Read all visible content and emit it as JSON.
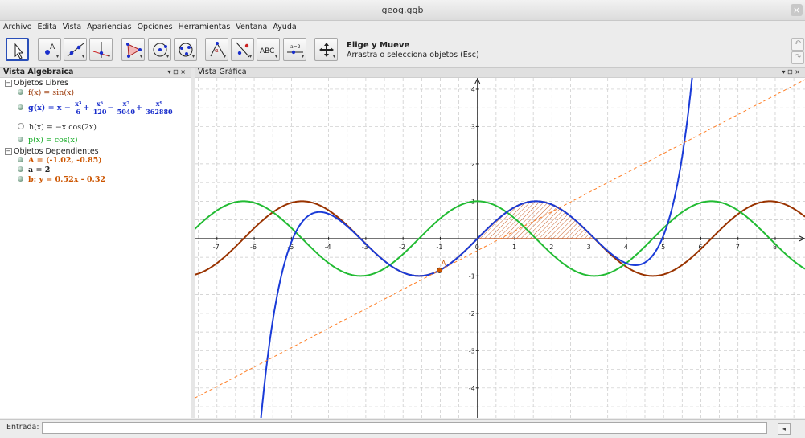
{
  "window": {
    "title": "geog.ggb",
    "close": "×"
  },
  "menu": [
    "Archivo",
    "Edita",
    "Vista",
    "Apariencias",
    "Opciones",
    "Herramientas",
    "Ventana",
    "Ayuda"
  ],
  "toolbar": {
    "help_title": "Elige y Mueve",
    "help_desc": "Arrastra o selecciona objetos (Esc)",
    "text_tool_label": "ABC",
    "slider_tool_label": "a=2",
    "tools": [
      "move-tool-icon",
      "point-tool-icon",
      "line-tool-icon",
      "perpendicular-tool-icon",
      "polygon-tool-icon",
      "circle-tool-icon",
      "conic-tool-icon",
      "angle-tool-icon",
      "reflect-tool-icon",
      "text-tool-icon",
      "slider-tool-icon",
      "move-view-tool-icon"
    ]
  },
  "algebra": {
    "title": "Vista Algebraica",
    "controls": "▾ ⊡ ×",
    "free_group": "Objetos Libres",
    "dependent_group": "Objetos Dependientes",
    "f": "f(x) = sin(x)",
    "g": {
      "prefix": "g(x) = x −",
      "t1n": "x³",
      "t1d": "6",
      "t2n": "x⁵",
      "t2d": "120",
      "t3n": "x⁷",
      "t3d": "5040",
      "t4n": "x⁹",
      "t4d": "362880",
      "plus1": "+",
      "minus": "−",
      "plus2": "+"
    },
    "h": "h(x) = −x cos(2x)",
    "p": "p(x) = cos(x)",
    "A": "A = (-1.02, -0.85)",
    "a": "a = 2",
    "b": "b: y = 0.52x - 0.32",
    "colors": {
      "f": "#993300",
      "g": "#1a2fcc",
      "h": "#333333",
      "p": "#11aa22",
      "A": "#cc5500"
    }
  },
  "graphics": {
    "title": "Vista Gráfica",
    "controls": "▾ ⊡ ×",
    "point_label": "A"
  },
  "input": {
    "label": "Entrada:",
    "value": "",
    "help": "◂"
  },
  "chart_data": {
    "type": "line",
    "xlim": [
      -7.6,
      8.8
    ],
    "ylim": [
      -4.8,
      4.3
    ],
    "x_ticks": [
      -7,
      -6,
      -5,
      -4,
      -3,
      -2,
      -1,
      0,
      1,
      2,
      3,
      4,
      5,
      6,
      7,
      8
    ],
    "y_ticks": [
      -4,
      -3,
      -2,
      -1,
      1,
      2,
      3,
      4
    ],
    "grid": true,
    "series": [
      {
        "name": "f(x) = sin(x)",
        "fn": "sin",
        "color": "#993300"
      },
      {
        "name": "p(x) = cos(x)",
        "fn": "cos",
        "color": "#22bb33"
      },
      {
        "name": "g(x) = x − x³/6 + x⁵/120 − x⁷/5040 + x⁹/362880",
        "fn": "taylor9",
        "color": "#1a3bd8"
      },
      {
        "name": "b: y = 0.52x - 0.32",
        "fn": "line",
        "slope": 0.52,
        "intercept": -0.32,
        "color": "#ff7f27",
        "dashed": true
      }
    ],
    "point": {
      "name": "A",
      "x": -1.02,
      "y": -0.85,
      "color": "#cc5500"
    },
    "shaded_region": {
      "from": 0,
      "to": 3.14,
      "under": "sin",
      "color": "#cc6633"
    }
  }
}
